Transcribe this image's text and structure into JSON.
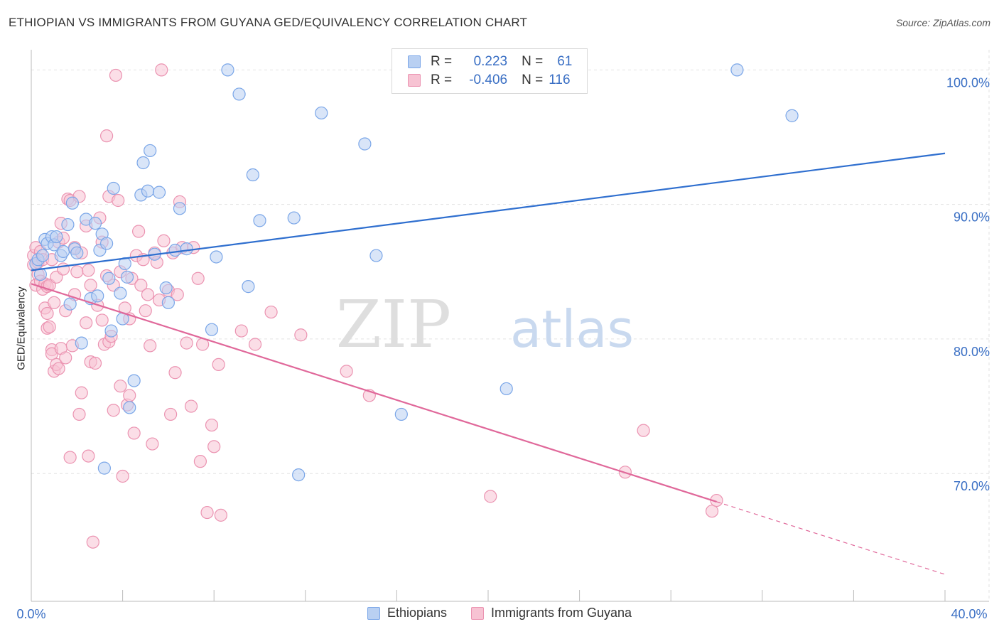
{
  "header": {
    "title": "ETHIOPIAN VS IMMIGRANTS FROM GUYANA GED/EQUIVALENCY CORRELATION CHART",
    "source": "Source: ZipAtlas.com"
  },
  "watermark": {
    "zip": "ZIP",
    "atlas": "atlas"
  },
  "colors": {
    "ethiopians_fill": "#b9d0f2",
    "ethiopians_stroke": "#7aa6e8",
    "ethiopians_line": "#2f6fcf",
    "guyana_fill": "#f7c3d3",
    "guyana_stroke": "#eb93b1",
    "guyana_line": "#e0689a",
    "axis_text": "#3a6fc4"
  },
  "stats": {
    "rows": [
      {
        "r_label": "R =",
        "r_value": "0.223",
        "n_label": "N =",
        "n_value": "61"
      },
      {
        "r_label": "R =",
        "r_value": "-0.406",
        "n_label": "N =",
        "n_value": "116"
      }
    ]
  },
  "legend": {
    "items": [
      "Ethiopians",
      "Immigrants from Guyana"
    ]
  },
  "chart_data": {
    "type": "scatter",
    "title": "ETHIOPIAN VS IMMIGRANTS FROM GUYANA GED/EQUIVALENCY CORRELATION CHART",
    "ylabel": "GED/Equivalency",
    "xlabel": "",
    "xlim": [
      0,
      40
    ],
    "ylim": [
      60.5,
      101.5
    ],
    "x_tick_labels": [
      "0.0%",
      "40.0%"
    ],
    "y_ticks": [
      70,
      80,
      90,
      100
    ],
    "y_tick_labels": [
      "70.0%",
      "80.0%",
      "90.0%",
      "100.0%"
    ],
    "grid": true,
    "legend_position": "bottom",
    "series": [
      {
        "name": "Ethiopians",
        "r": 0.223,
        "n": 61,
        "trend": {
          "x": [
            0,
            40
          ],
          "y": [
            85.1,
            93.8
          ],
          "dashed_from": null
        },
        "points": [
          [
            0.2,
            85.6
          ],
          [
            0.3,
            85.9
          ],
          [
            0.4,
            84.8
          ],
          [
            0.5,
            86.2
          ],
          [
            0.6,
            87.4
          ],
          [
            0.7,
            87.1
          ],
          [
            0.9,
            87.6
          ],
          [
            1.0,
            87.0
          ],
          [
            1.1,
            87.6
          ],
          [
            1.3,
            86.2
          ],
          [
            1.4,
            86.5
          ],
          [
            1.6,
            88.5
          ],
          [
            1.7,
            82.6
          ],
          [
            1.8,
            90.1
          ],
          [
            1.9,
            86.7
          ],
          [
            2.0,
            86.4
          ],
          [
            2.2,
            79.7
          ],
          [
            2.4,
            88.9
          ],
          [
            2.6,
            83.0
          ],
          [
            2.8,
            88.6
          ],
          [
            2.9,
            83.2
          ],
          [
            3.0,
            86.6
          ],
          [
            3.1,
            87.8
          ],
          [
            3.2,
            70.4
          ],
          [
            3.3,
            87.1
          ],
          [
            3.4,
            84.5
          ],
          [
            3.5,
            80.6
          ],
          [
            3.6,
            91.2
          ],
          [
            3.9,
            83.4
          ],
          [
            4.0,
            81.5
          ],
          [
            4.1,
            85.6
          ],
          [
            4.2,
            84.6
          ],
          [
            4.3,
            74.9
          ],
          [
            4.5,
            76.9
          ],
          [
            4.8,
            90.7
          ],
          [
            4.9,
            93.1
          ],
          [
            5.1,
            91.0
          ],
          [
            5.2,
            94.0
          ],
          [
            5.4,
            86.3
          ],
          [
            5.6,
            90.9
          ],
          [
            5.9,
            83.8
          ],
          [
            6.0,
            82.7
          ],
          [
            6.3,
            86.6
          ],
          [
            6.5,
            89.7
          ],
          [
            6.8,
            86.7
          ],
          [
            7.9,
            80.7
          ],
          [
            8.1,
            86.1
          ],
          [
            8.6,
            100.0
          ],
          [
            9.1,
            98.2
          ],
          [
            9.5,
            83.9
          ],
          [
            9.7,
            92.2
          ],
          [
            10.0,
            88.8
          ],
          [
            11.5,
            89.0
          ],
          [
            11.7,
            69.9
          ],
          [
            12.7,
            96.8
          ],
          [
            14.6,
            94.5
          ],
          [
            15.1,
            86.2
          ],
          [
            16.2,
            74.4
          ],
          [
            20.8,
            76.3
          ],
          [
            30.9,
            100.0
          ],
          [
            33.3,
            96.6
          ]
        ]
      },
      {
        "name": "Immigrants from Guyana",
        "r": -0.406,
        "n": 116,
        "trend": {
          "x": [
            0,
            40
          ],
          "y": [
            84.1,
            62.5
          ],
          "dashed_from": 30
        },
        "points": [
          [
            0.1,
            86.2
          ],
          [
            0.1,
            85.5
          ],
          [
            0.2,
            84.0
          ],
          [
            0.2,
            86.8
          ],
          [
            0.3,
            85.7
          ],
          [
            0.3,
            84.8
          ],
          [
            0.4,
            84.3
          ],
          [
            0.4,
            86.5
          ],
          [
            0.5,
            85.9
          ],
          [
            0.5,
            83.7
          ],
          [
            0.6,
            84.1
          ],
          [
            0.6,
            82.3
          ],
          [
            0.7,
            83.9
          ],
          [
            0.7,
            80.8
          ],
          [
            0.7,
            81.9
          ],
          [
            0.8,
            84.0
          ],
          [
            0.8,
            80.9
          ],
          [
            0.9,
            85.9
          ],
          [
            0.9,
            79.2
          ],
          [
            0.9,
            78.9
          ],
          [
            1.0,
            82.7
          ],
          [
            1.0,
            77.6
          ],
          [
            1.1,
            78.1
          ],
          [
            1.1,
            84.6
          ],
          [
            1.2,
            87.2
          ],
          [
            1.2,
            77.8
          ],
          [
            1.3,
            88.6
          ],
          [
            1.3,
            79.3
          ],
          [
            1.4,
            87.5
          ],
          [
            1.4,
            85.2
          ],
          [
            1.5,
            82.1
          ],
          [
            1.5,
            78.6
          ],
          [
            1.6,
            90.4
          ],
          [
            1.7,
            71.2
          ],
          [
            1.7,
            90.3
          ],
          [
            1.8,
            79.5
          ],
          [
            1.9,
            83.3
          ],
          [
            1.9,
            86.8
          ],
          [
            2.0,
            85.0
          ],
          [
            2.1,
            90.6
          ],
          [
            2.1,
            74.4
          ],
          [
            2.2,
            76.0
          ],
          [
            2.2,
            86.4
          ],
          [
            2.4,
            81.2
          ],
          [
            2.4,
            88.4
          ],
          [
            2.5,
            71.3
          ],
          [
            2.5,
            85.1
          ],
          [
            2.6,
            84.0
          ],
          [
            2.6,
            78.3
          ],
          [
            2.7,
            64.9
          ],
          [
            2.8,
            78.2
          ],
          [
            2.9,
            82.5
          ],
          [
            3.0,
            89.0
          ],
          [
            3.1,
            81.4
          ],
          [
            3.1,
            87.2
          ],
          [
            3.2,
            79.6
          ],
          [
            3.3,
            84.7
          ],
          [
            3.3,
            95.1
          ],
          [
            3.4,
            90.6
          ],
          [
            3.4,
            79.8
          ],
          [
            3.5,
            80.2
          ],
          [
            3.6,
            74.7
          ],
          [
            3.6,
            84.0
          ],
          [
            3.7,
            99.6
          ],
          [
            3.8,
            90.3
          ],
          [
            3.9,
            85.0
          ],
          [
            3.9,
            76.5
          ],
          [
            4.0,
            69.8
          ],
          [
            4.1,
            82.3
          ],
          [
            4.2,
            75.1
          ],
          [
            4.3,
            81.5
          ],
          [
            4.3,
            75.8
          ],
          [
            4.4,
            84.5
          ],
          [
            4.5,
            73.0
          ],
          [
            4.6,
            86.2
          ],
          [
            4.7,
            88.0
          ],
          [
            4.8,
            84.0
          ],
          [
            4.9,
            85.9
          ],
          [
            5.0,
            82.1
          ],
          [
            5.1,
            83.3
          ],
          [
            5.2,
            79.5
          ],
          [
            5.3,
            72.2
          ],
          [
            5.4,
            86.4
          ],
          [
            5.5,
            85.7
          ],
          [
            5.6,
            82.9
          ],
          [
            5.7,
            100.0
          ],
          [
            5.8,
            87.3
          ],
          [
            6.0,
            83.6
          ],
          [
            6.1,
            74.4
          ],
          [
            6.2,
            86.4
          ],
          [
            6.3,
            77.5
          ],
          [
            6.4,
            83.3
          ],
          [
            6.5,
            90.2
          ],
          [
            6.6,
            86.8
          ],
          [
            6.8,
            79.7
          ],
          [
            7.0,
            75.0
          ],
          [
            7.1,
            86.8
          ],
          [
            7.3,
            84.5
          ],
          [
            7.4,
            70.9
          ],
          [
            7.5,
            79.6
          ],
          [
            7.7,
            67.1
          ],
          [
            7.9,
            73.6
          ],
          [
            8.0,
            72.0
          ],
          [
            8.2,
            78.1
          ],
          [
            8.3,
            66.9
          ],
          [
            9.2,
            80.6
          ],
          [
            9.8,
            79.6
          ],
          [
            10.5,
            82.0
          ],
          [
            11.8,
            80.3
          ],
          [
            13.8,
            77.6
          ],
          [
            14.8,
            75.8
          ],
          [
            20.1,
            68.3
          ],
          [
            26.8,
            73.2
          ],
          [
            29.8,
            67.2
          ],
          [
            30.0,
            68.0
          ],
          [
            26.0,
            70.1
          ]
        ]
      }
    ]
  }
}
